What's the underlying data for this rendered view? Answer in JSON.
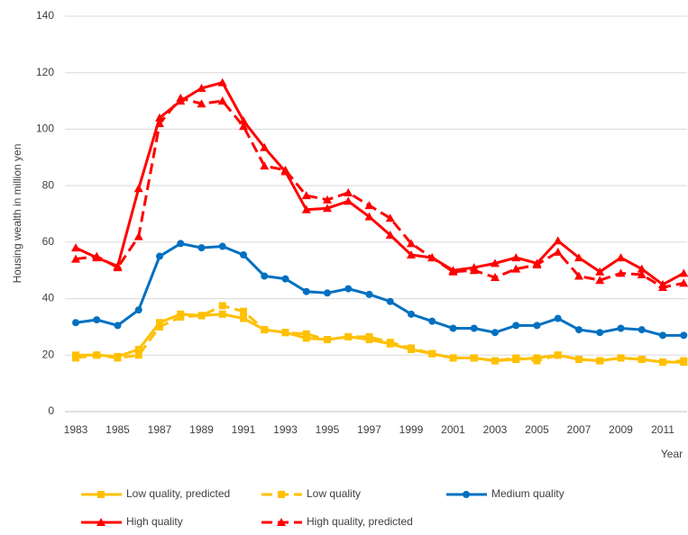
{
  "chart_data": {
    "type": "line",
    "y_label": "Housing wealth in million yen",
    "x_label": "Year",
    "categories": [
      "1983",
      null,
      "1985",
      null,
      "1987",
      null,
      "1989",
      null,
      "1991",
      null,
      "1993",
      null,
      "1995",
      null,
      "1997",
      null,
      "1999",
      null,
      "2001",
      null,
      "2003",
      null,
      "2005",
      null,
      "2007",
      null,
      "2009",
      null,
      "2011",
      null
    ],
    "ylim": [
      0,
      140
    ],
    "yticks": [
      0,
      20,
      40,
      60,
      80,
      100,
      120,
      140
    ],
    "grid": true,
    "legend": "bottom",
    "series": [
      {
        "name": "Low quality, predicted",
        "color": "#ffc000",
        "marker": "square",
        "dash": false,
        "values": [
          20,
          20,
          19.5,
          22,
          31.5,
          34.5,
          34,
          34.5,
          33,
          29,
          28,
          26,
          25.5,
          26.5,
          25.5,
          24,
          22,
          20.5,
          19,
          19,
          18,
          18.5,
          19,
          20,
          18.5,
          18,
          19,
          18.5,
          17.5,
          17.5
        ]
      },
      {
        "name": "Low quality",
        "color": "#ffc000",
        "marker": "square",
        "dash": true,
        "values": [
          19,
          20,
          19,
          20,
          30,
          33.5,
          34,
          37.5,
          35.5,
          29,
          28,
          27.5,
          25.5,
          26.5,
          26.5,
          24.5,
          22.5,
          20.5,
          19,
          19,
          18,
          19,
          18,
          20,
          18.5,
          18,
          19,
          18.5,
          17.5,
          18
        ]
      },
      {
        "name": "Medium quality",
        "color": "#0070c0",
        "marker": "circle",
        "dash": false,
        "values": [
          31.5,
          32.5,
          30.5,
          36,
          55,
          59.5,
          58,
          58.5,
          55.5,
          48,
          47,
          42.5,
          42,
          43.5,
          41.5,
          39,
          34.5,
          32,
          29.5,
          29.5,
          28,
          30.5,
          30.5,
          33,
          29,
          28,
          29.5,
          29,
          27,
          27
        ]
      },
      {
        "name": "High quality",
        "color": "#ff0000",
        "marker": "triangle",
        "dash": false,
        "values": [
          58,
          54.5,
          51.5,
          79,
          104,
          110,
          114.5,
          116.5,
          103,
          93.5,
          85,
          71.5,
          72,
          74.5,
          69,
          62.5,
          55.5,
          54.5,
          50,
          51,
          52.5,
          54.5,
          52.5,
          60.5,
          54.5,
          49.5,
          54.5,
          50.5,
          45,
          49
        ]
      },
      {
        "name": "High quality, predicted",
        "color": "#ff0000",
        "marker": "triangle",
        "dash": true,
        "values": [
          54,
          55,
          51,
          62,
          102,
          111,
          109,
          110,
          101,
          87,
          85.5,
          76.5,
          75,
          77.5,
          73,
          68.5,
          59.5,
          54.5,
          49.5,
          50,
          47.5,
          50.5,
          52,
          56.5,
          48,
          46.5,
          49,
          48.5,
          44,
          45.5
        ]
      }
    ]
  }
}
